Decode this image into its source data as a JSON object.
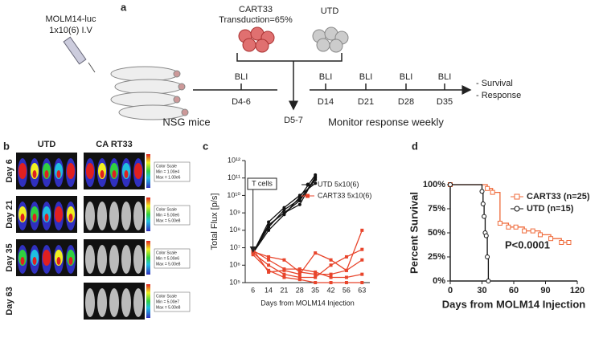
{
  "panel_labels": [
    "a",
    "b",
    "c",
    "d"
  ],
  "panel_a": {
    "inoculum": [
      "MOLM14-luc",
      "1x10(6) I.V"
    ],
    "cart": [
      "CART33",
      "Transduction=65%"
    ],
    "utd": "UTD",
    "bli": [
      "BLI",
      "BLI",
      "BLI",
      "BLI",
      "BLI"
    ],
    "days": [
      "D4-6",
      "D14",
      "D21",
      "D28",
      "D35"
    ],
    "infusion_day": "D5-7",
    "outcomes": [
      "- Survival",
      "- Response"
    ],
    "mice": "NSG mice",
    "monitor": "Monitor response weekly"
  },
  "panel_b": {
    "columns": [
      "UTD",
      "CA RT33"
    ],
    "rows": [
      {
        "label": "Day 6",
        "utd_shown": true,
        "scale": [
          "Color Scale",
          "Min = 1.00e4",
          "Max = 1.00e6"
        ]
      },
      {
        "label": "Day 21",
        "utd_shown": true,
        "scale": [
          "Color Scale",
          "Min = 5.00e6",
          "Max = 5.00e8"
        ]
      },
      {
        "label": "Day 35",
        "utd_shown": true,
        "scale": [
          "Color Scale",
          "Min = 5.00e6",
          "Max = 5.00e8"
        ]
      },
      {
        "label": "Day 63",
        "utd_shown": false,
        "scale": [
          "Color Scale",
          "Min = 5.00e7",
          "Max = 5.00e8"
        ]
      }
    ]
  },
  "chart_data": [
    {
      "type": "line",
      "log_y": true,
      "ylabel": "Total Flux [p/s]",
      "xlabel": "Days from MOLM14 Injection",
      "annotation": "T cells",
      "categories": [
        "6",
        "14",
        "21",
        "28",
        "35",
        "42",
        "56",
        "63"
      ],
      "ylim": [
        100000,
        1000000000000
      ],
      "yticks": [
        {
          "value": 100000,
          "label": "10⁵"
        },
        {
          "value": 1000000,
          "label": "10⁶"
        },
        {
          "value": 10000000,
          "label": "10⁷"
        },
        {
          "value": 100000000,
          "label": "10⁸"
        },
        {
          "value": 1000000000,
          "label": "10⁹"
        },
        {
          "value": 10000000000,
          "label": "10¹⁰"
        },
        {
          "value": 100000000000,
          "label": "10¹¹"
        },
        {
          "value": 1000000000000,
          "label": "10¹²"
        }
      ],
      "series": [
        {
          "name": "UTD 5x10(6)",
          "color": "#111111",
          "marker": "circle",
          "lines": [
            [
              5000000,
              200000000,
              1000000000,
              5000000000,
              100000000000,
              null,
              null,
              null
            ],
            [
              5000000,
              100000000,
              800000000,
              8000000000,
              150000000000,
              null,
              null,
              null
            ],
            [
              5000000,
              300000000,
              2000000000,
              10000000000,
              50000000000,
              null,
              null,
              null
            ],
            [
              5000000,
              200000000,
              1000000000,
              3000000000,
              120000000000,
              null,
              null,
              null
            ],
            [
              5000000,
              150000000,
              1500000000,
              6000000000,
              80000000000,
              null,
              null,
              null
            ]
          ]
        },
        {
          "name": "CART33 5x10(6)",
          "color": "#e8452c",
          "marker": "square",
          "lines": [
            [
              8000000,
              400000,
              500000,
              300000,
              5000000,
              2000000,
              500000,
              100000000
            ],
            [
              5000000,
              1000000,
              300000,
              200000,
              200000,
              1000000,
              3000000,
              8000000
            ],
            [
              6000000,
              3000000,
              2000000,
              400000,
              300000,
              300000,
              500000,
              2000000
            ],
            [
              7000000,
              2000000,
              600000,
              600000,
              400000,
              200000,
              200000,
              300000
            ],
            [
              4000000,
              500000,
              200000,
              150000,
              100000,
              100000,
              100000,
              100000
            ]
          ]
        }
      ]
    },
    {
      "type": "survival",
      "ylabel": "Percent Survival",
      "xlabel": "Days from MOLM14 Injection",
      "annotation": "P<0.0001",
      "xlim": [
        0,
        120
      ],
      "xticks": [
        0,
        30,
        60,
        90,
        120
      ],
      "ylim": [
        0,
        100
      ],
      "yticks": [
        {
          "value": 0,
          "label": "0%"
        },
        {
          "value": 25,
          "label": "25%"
        },
        {
          "value": 50,
          "label": "50%"
        },
        {
          "value": 75,
          "label": "75%"
        },
        {
          "value": 100,
          "label": "100%"
        }
      ],
      "series": [
        {
          "name": "CART33 (n=25)",
          "color": "#ef6a3a",
          "marker": "square",
          "x": [
            0,
            35,
            40,
            47,
            55,
            62,
            70,
            78,
            85,
            95,
            105,
            112
          ],
          "values": [
            100,
            96,
            92,
            60,
            56,
            56,
            52,
            52,
            48,
            44,
            40,
            40
          ]
        },
        {
          "name": "UTD (n=15)",
          "color": "#111111",
          "marker": "circle",
          "x": [
            0,
            30,
            31,
            32,
            33,
            34,
            35,
            36
          ],
          "values": [
            100,
            93,
            80,
            67,
            50,
            47,
            25,
            0
          ]
        }
      ]
    }
  ]
}
